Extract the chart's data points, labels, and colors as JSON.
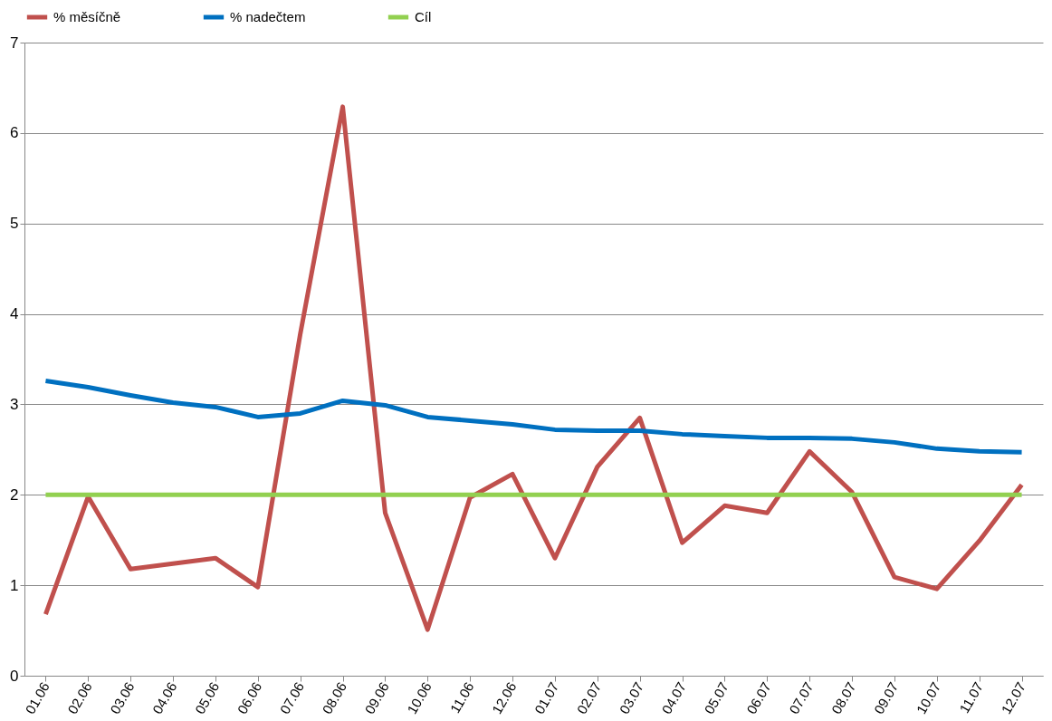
{
  "chart_data": {
    "type": "line",
    "categories": [
      "01.06",
      "02.06",
      "03.06",
      "04.06",
      "05.06",
      "06.06",
      "07.06",
      "08.06",
      "09.06",
      "10.06",
      "11.06",
      "12.06",
      "01.07",
      "02.07",
      "03.07",
      "04.07",
      "05.07",
      "06.07",
      "07.07",
      "08.07",
      "09.07",
      "10.07",
      "11.07",
      "12.07"
    ],
    "series": [
      {
        "name": "% měsíčně",
        "color": "#c0504d",
        "values": [
          0.68,
          1.98,
          1.18,
          1.24,
          1.3,
          0.98,
          3.78,
          6.29,
          1.8,
          0.51,
          1.97,
          2.23,
          1.3,
          2.31,
          2.85,
          1.47,
          1.88,
          1.8,
          2.48,
          2.03,
          1.09,
          0.96,
          1.49,
          2.11
        ]
      },
      {
        "name": "% nadečtem",
        "color": "#0070c0",
        "values": [
          3.26,
          3.19,
          3.1,
          3.02,
          2.97,
          2.86,
          2.9,
          3.04,
          2.99,
          2.86,
          2.82,
          2.78,
          2.72,
          2.71,
          2.71,
          2.67,
          2.65,
          2.63,
          2.63,
          2.62,
          2.58,
          2.51,
          2.48,
          2.47
        ]
      },
      {
        "name": "Cíl",
        "color": "#92d050",
        "values": [
          2,
          2,
          2,
          2,
          2,
          2,
          2,
          2,
          2,
          2,
          2,
          2,
          2,
          2,
          2,
          2,
          2,
          2,
          2,
          2,
          2,
          2,
          2,
          2
        ]
      }
    ],
    "ylim": [
      0,
      7
    ],
    "yticks": [
      0,
      1,
      2,
      3,
      4,
      5,
      6,
      7
    ],
    "grid": "y",
    "legend": "top",
    "marker": "none",
    "line_style": "solid"
  }
}
